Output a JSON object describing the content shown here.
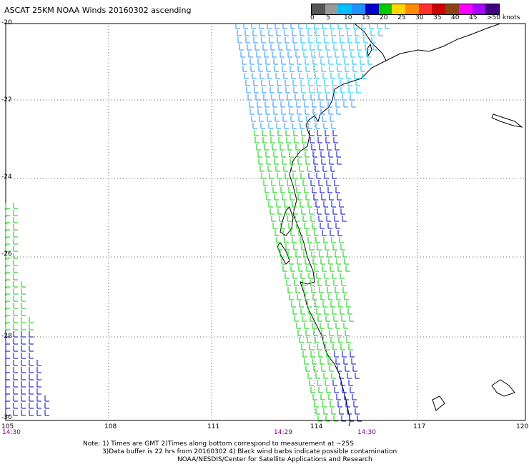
{
  "title": "ASCAT 25KM NOAA Winds 20160302 ascending",
  "legend": {
    "labels": [
      "0",
      "5",
      "10",
      "15",
      "20",
      "25",
      "30",
      "35",
      "40",
      "45",
      ">50 knots"
    ],
    "colors": [
      "#555555",
      "#999999",
      "#00bfff",
      "#1e90ff",
      "#0000cd",
      "#00cc00",
      "#ffd700",
      "#ff8c00",
      "#ff3030",
      "#cc0000",
      "#8b4513",
      "#ff00ff",
      "#aa00ff",
      "#400080"
    ]
  },
  "axes": {
    "lat_labels": [
      "-20",
      "-22",
      "-24",
      "-26",
      "-28",
      "-30"
    ],
    "lon_labels": [
      "105",
      "108",
      "111",
      "114",
      "117",
      "120"
    ]
  },
  "pass_times": [
    "14:30",
    "14:29",
    "14:30"
  ],
  "notes": {
    "line1": "Note: 1) Times are GMT 2)Times along bottom correspond to measurement at ~25S",
    "line2": "3)Data buffer is 22 hrs from 20160302 4) Black wind barbs indicate possible contamination",
    "line3": "NOAA/NESDIS/Center for Satellite Applications and Research"
  }
}
